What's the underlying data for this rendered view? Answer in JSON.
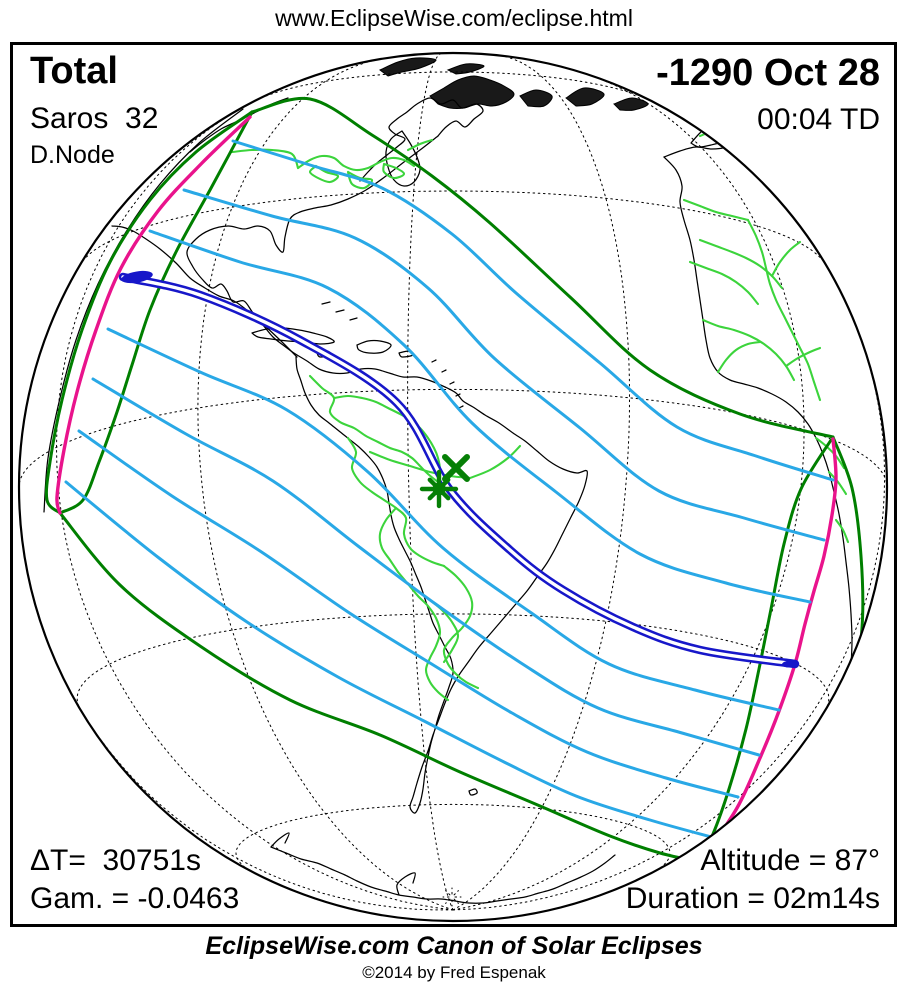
{
  "header": {
    "url": "www.EclipseWise.com/eclipse.html"
  },
  "eclipse": {
    "type": "Total",
    "saros": "Saros  32",
    "node": "D.Node",
    "date": "-1290 Oct 28",
    "time": "00:04 TD",
    "delta_t": "ΔT=  30751s",
    "gamma": "Gam. = -0.0463",
    "altitude": "Altitude = 87°",
    "duration": "Duration = 02m14s"
  },
  "footer": {
    "title": "EclipseWise.com Canon of Solar Eclipses",
    "copyright": "©2014 by Fred Espenak"
  },
  "colors": {
    "background": "#FFFFFF",
    "coast_black": "#000000",
    "border_green": "#3CD43C",
    "limit_green": "#007F00",
    "sunrise_sunset_magenta": "#E9138C",
    "contour_cyan": "#29A8E6",
    "path_blue": "#1717C9",
    "marker_green": "#067F06"
  },
  "map": {
    "markers": [
      {
        "name": "greatest-eclipse-marker",
        "symbol": "asterisk"
      },
      {
        "name": "greatest-duration-marker",
        "symbol": "x"
      }
    ]
  }
}
